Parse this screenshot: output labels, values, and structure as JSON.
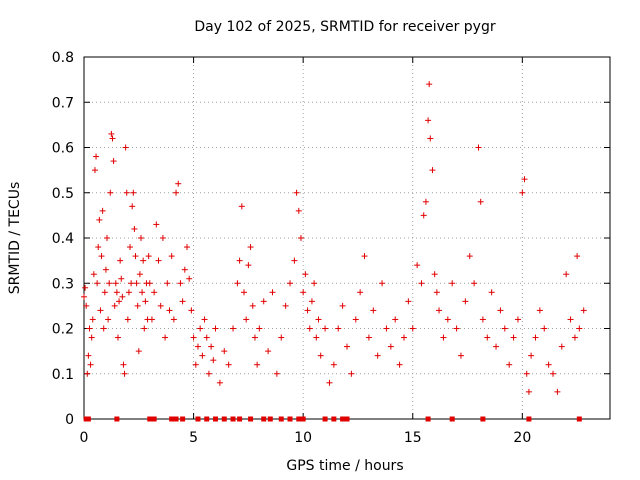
{
  "chart_data": {
    "type": "scatter",
    "title": "Day 102 of 2025, SRMTID for receiver pygr",
    "xlabel": "GPS time / hours",
    "ylabel": "SRMTID / TECUs",
    "xlim": [
      0,
      24
    ],
    "ylim": [
      0,
      0.8
    ],
    "x_ticks": [
      0,
      5,
      10,
      15,
      20
    ],
    "y_ticks": [
      0,
      0.1,
      0.2,
      0.3,
      0.4,
      0.5,
      0.6,
      0.7,
      0.8
    ],
    "x_tick_labels": [
      "0",
      "5",
      "10",
      "15",
      "20"
    ],
    "y_tick_labels": [
      "0",
      "0.1",
      "0.2",
      "0.3",
      "0.4",
      "0.5",
      "0.6",
      "0.7",
      "0.8"
    ],
    "grid": true,
    "marker": "plus",
    "color": "#e00000",
    "series": [
      {
        "name": "SRMTID",
        "points": [
          [
            0.0,
            0.27
          ],
          [
            0.05,
            0.29
          ],
          [
            0.1,
            0.25
          ],
          [
            0.15,
            0.1
          ],
          [
            0.2,
            0.14
          ],
          [
            0.25,
            0.2
          ],
          [
            0.3,
            0.12
          ],
          [
            0.35,
            0.18
          ],
          [
            0.4,
            0.22
          ],
          [
            0.45,
            0.32
          ],
          [
            0.5,
            0.55
          ],
          [
            0.55,
            0.58
          ],
          [
            0.6,
            0.3
          ],
          [
            0.65,
            0.38
          ],
          [
            0.7,
            0.44
          ],
          [
            0.75,
            0.24
          ],
          [
            0.8,
            0.36
          ],
          [
            0.85,
            0.46
          ],
          [
            0.9,
            0.2
          ],
          [
            0.95,
            0.28
          ],
          [
            1.0,
            0.33
          ],
          [
            1.05,
            0.4
          ],
          [
            1.1,
            0.22
          ],
          [
            1.15,
            0.3
          ],
          [
            1.2,
            0.5
          ],
          [
            1.25,
            0.63
          ],
          [
            1.3,
            0.62
          ],
          [
            1.35,
            0.57
          ],
          [
            1.4,
            0.25
          ],
          [
            1.45,
            0.3
          ],
          [
            1.5,
            0.28
          ],
          [
            1.55,
            0.18
          ],
          [
            1.6,
            0.26
          ],
          [
            1.65,
            0.35
          ],
          [
            1.7,
            0.31
          ],
          [
            1.75,
            0.27
          ],
          [
            1.8,
            0.12
          ],
          [
            1.85,
            0.1
          ],
          [
            1.9,
            0.6
          ],
          [
            1.95,
            0.5
          ],
          [
            2.0,
            0.22
          ],
          [
            2.05,
            0.28
          ],
          [
            2.1,
            0.38
          ],
          [
            2.15,
            0.3
          ],
          [
            2.2,
            0.47
          ],
          [
            2.25,
            0.5
          ],
          [
            2.3,
            0.42
          ],
          [
            2.35,
            0.36
          ],
          [
            2.4,
            0.3
          ],
          [
            2.45,
            0.25
          ],
          [
            2.5,
            0.15
          ],
          [
            2.55,
            0.32
          ],
          [
            2.6,
            0.4
          ],
          [
            2.65,
            0.28
          ],
          [
            2.7,
            0.35
          ],
          [
            2.75,
            0.2
          ],
          [
            2.8,
            0.26
          ],
          [
            2.85,
            0.3
          ],
          [
            2.9,
            0.22
          ],
          [
            2.95,
            0.36
          ],
          [
            3.0,
            0.3
          ],
          [
            3.1,
            0.22
          ],
          [
            3.2,
            0.28
          ],
          [
            3.3,
            0.43
          ],
          [
            3.4,
            0.35
          ],
          [
            3.5,
            0.25
          ],
          [
            3.6,
            0.4
          ],
          [
            3.7,
            0.18
          ],
          [
            3.8,
            0.3
          ],
          [
            3.9,
            0.24
          ],
          [
            4.0,
            0.36
          ],
          [
            4.1,
            0.22
          ],
          [
            4.2,
            0.5
          ],
          [
            4.3,
            0.52
          ],
          [
            4.4,
            0.3
          ],
          [
            4.5,
            0.26
          ],
          [
            4.6,
            0.33
          ],
          [
            4.7,
            0.38
          ],
          [
            4.8,
            0.31
          ],
          [
            4.9,
            0.24
          ],
          [
            5.0,
            0.18
          ],
          [
            5.1,
            0.12
          ],
          [
            5.2,
            0.16
          ],
          [
            5.3,
            0.2
          ],
          [
            5.4,
            0.14
          ],
          [
            5.5,
            0.22
          ],
          [
            5.6,
            0.18
          ],
          [
            5.7,
            0.1
          ],
          [
            5.8,
            0.16
          ],
          [
            5.9,
            0.13
          ],
          [
            6.0,
            0.2
          ],
          [
            6.2,
            0.08
          ],
          [
            6.4,
            0.15
          ],
          [
            6.6,
            0.12
          ],
          [
            6.8,
            0.2
          ],
          [
            7.0,
            0.3
          ],
          [
            7.1,
            0.35
          ],
          [
            7.2,
            0.47
          ],
          [
            7.3,
            0.28
          ],
          [
            7.4,
            0.22
          ],
          [
            7.5,
            0.34
          ],
          [
            7.6,
            0.38
          ],
          [
            7.7,
            0.25
          ],
          [
            7.8,
            0.18
          ],
          [
            7.9,
            0.12
          ],
          [
            8.0,
            0.2
          ],
          [
            8.2,
            0.26
          ],
          [
            8.4,
            0.15
          ],
          [
            8.6,
            0.28
          ],
          [
            8.8,
            0.1
          ],
          [
            9.0,
            0.18
          ],
          [
            9.2,
            0.25
          ],
          [
            9.4,
            0.3
          ],
          [
            9.6,
            0.35
          ],
          [
            9.7,
            0.5
          ],
          [
            9.8,
            0.46
          ],
          [
            9.9,
            0.4
          ],
          [
            10.0,
            0.28
          ],
          [
            10.1,
            0.32
          ],
          [
            10.2,
            0.24
          ],
          [
            10.3,
            0.2
          ],
          [
            10.4,
            0.26
          ],
          [
            10.5,
            0.3
          ],
          [
            10.6,
            0.18
          ],
          [
            10.7,
            0.22
          ],
          [
            10.8,
            0.14
          ],
          [
            11.0,
            0.2
          ],
          [
            11.2,
            0.08
          ],
          [
            11.4,
            0.12
          ],
          [
            11.6,
            0.2
          ],
          [
            11.8,
            0.25
          ],
          [
            12.0,
            0.16
          ],
          [
            12.2,
            0.1
          ],
          [
            12.4,
            0.22
          ],
          [
            12.6,
            0.28
          ],
          [
            12.8,
            0.36
          ],
          [
            13.0,
            0.18
          ],
          [
            13.2,
            0.24
          ],
          [
            13.4,
            0.14
          ],
          [
            13.6,
            0.3
          ],
          [
            13.8,
            0.2
          ],
          [
            14.0,
            0.16
          ],
          [
            14.2,
            0.22
          ],
          [
            14.4,
            0.12
          ],
          [
            14.6,
            0.18
          ],
          [
            14.8,
            0.26
          ],
          [
            15.0,
            0.2
          ],
          [
            15.2,
            0.34
          ],
          [
            15.4,
            0.3
          ],
          [
            15.5,
            0.45
          ],
          [
            15.6,
            0.48
          ],
          [
            15.7,
            0.66
          ],
          [
            15.75,
            0.74
          ],
          [
            15.8,
            0.62
          ],
          [
            15.9,
            0.55
          ],
          [
            16.0,
            0.32
          ],
          [
            16.1,
            0.28
          ],
          [
            16.2,
            0.24
          ],
          [
            16.4,
            0.18
          ],
          [
            16.6,
            0.22
          ],
          [
            16.8,
            0.3
          ],
          [
            17.0,
            0.2
          ],
          [
            17.2,
            0.14
          ],
          [
            17.4,
            0.26
          ],
          [
            17.6,
            0.36
          ],
          [
            17.8,
            0.3
          ],
          [
            18.0,
            0.6
          ],
          [
            18.1,
            0.48
          ],
          [
            18.2,
            0.22
          ],
          [
            18.4,
            0.18
          ],
          [
            18.6,
            0.28
          ],
          [
            18.8,
            0.16
          ],
          [
            19.0,
            0.24
          ],
          [
            19.2,
            0.2
          ],
          [
            19.4,
            0.12
          ],
          [
            19.6,
            0.18
          ],
          [
            19.8,
            0.22
          ],
          [
            20.0,
            0.5
          ],
          [
            20.1,
            0.53
          ],
          [
            20.2,
            0.1
          ],
          [
            20.3,
            0.06
          ],
          [
            20.4,
            0.14
          ],
          [
            20.6,
            0.18
          ],
          [
            20.8,
            0.24
          ],
          [
            21.0,
            0.2
          ],
          [
            21.2,
            0.12
          ],
          [
            21.4,
            0.1
          ],
          [
            21.6,
            0.06
          ],
          [
            21.8,
            0.16
          ],
          [
            22.0,
            0.32
          ],
          [
            22.2,
            0.22
          ],
          [
            22.4,
            0.18
          ],
          [
            22.5,
            0.36
          ],
          [
            22.6,
            0.2
          ],
          [
            22.8,
            0.24
          ]
        ]
      }
    ],
    "zero_points_x": [
      0.1,
      0.2,
      1.5,
      3.0,
      3.2,
      4.0,
      4.2,
      4.5,
      5.2,
      5.6,
      6.0,
      6.4,
      6.8,
      7.1,
      7.6,
      8.2,
      8.5,
      9.0,
      9.4,
      9.8,
      10.0,
      11.0,
      11.4,
      11.8,
      12.0,
      15.7,
      16.8,
      18.2,
      20.3,
      22.6
    ],
    "legend": "none"
  }
}
